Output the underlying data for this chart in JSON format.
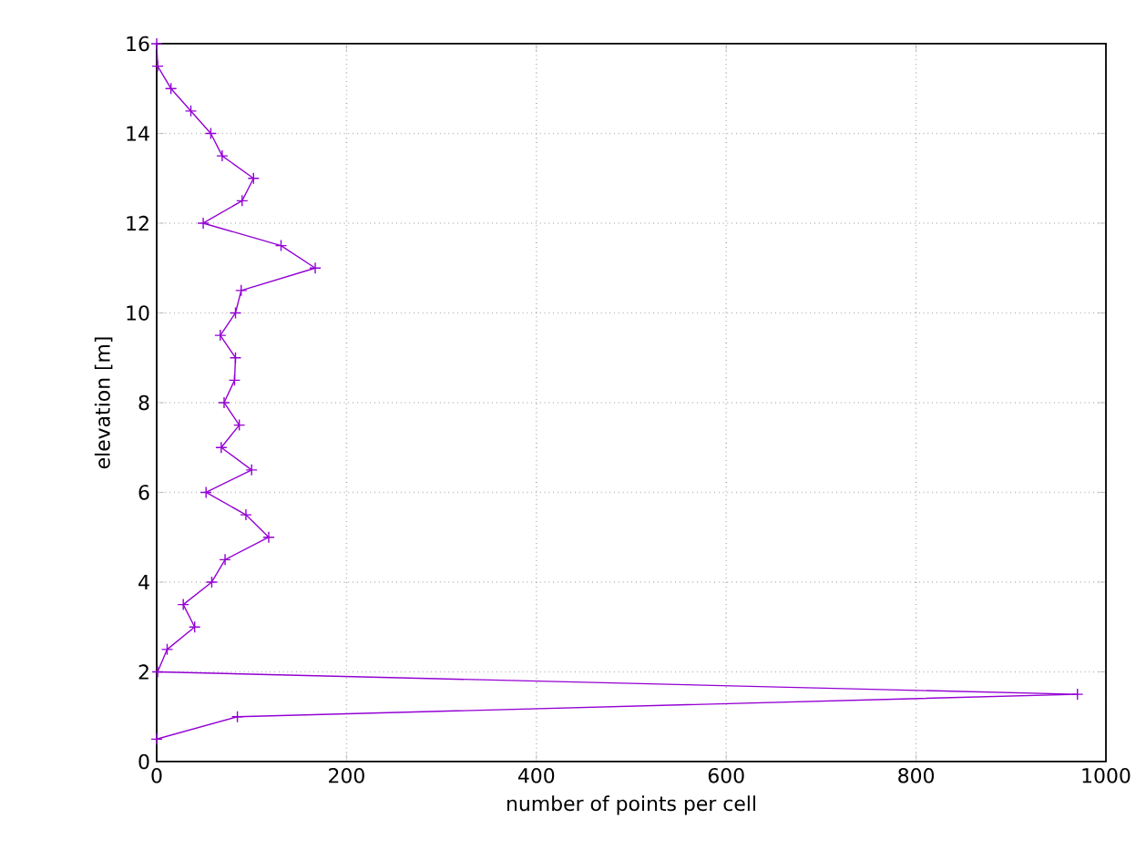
{
  "chart_data": {
    "type": "line",
    "xlabel": "number of points per cell",
    "ylabel": "elevation [m]",
    "x": [
      0,
      1,
      15,
      36,
      57,
      69,
      102,
      90,
      49,
      131,
      167,
      89,
      83,
      67,
      83,
      82,
      71,
      87,
      68,
      100,
      52,
      94,
      118,
      72,
      58,
      28,
      40,
      11,
      1,
      970,
      85,
      0
    ],
    "values": [
      16,
      15.5,
      15,
      14.5,
      14,
      13.5,
      13,
      12.5,
      12,
      11.5,
      11,
      10.5,
      10,
      9.5,
      9,
      8.5,
      8,
      7.5,
      7,
      6.5,
      6,
      5.5,
      5,
      4.5,
      4,
      3.5,
      3,
      2.5,
      2,
      1.5,
      1,
      0.5
    ],
    "color": "#9400d3",
    "marker": "cross",
    "line_style": "solid",
    "grid": true,
    "xlim": [
      0,
      1000
    ],
    "xticks": [
      0,
      200,
      400,
      600,
      800,
      1000
    ],
    "ylim": [
      0,
      16
    ],
    "yticks": [
      0,
      2,
      4,
      6,
      8,
      10,
      12,
      14,
      16
    ]
  }
}
